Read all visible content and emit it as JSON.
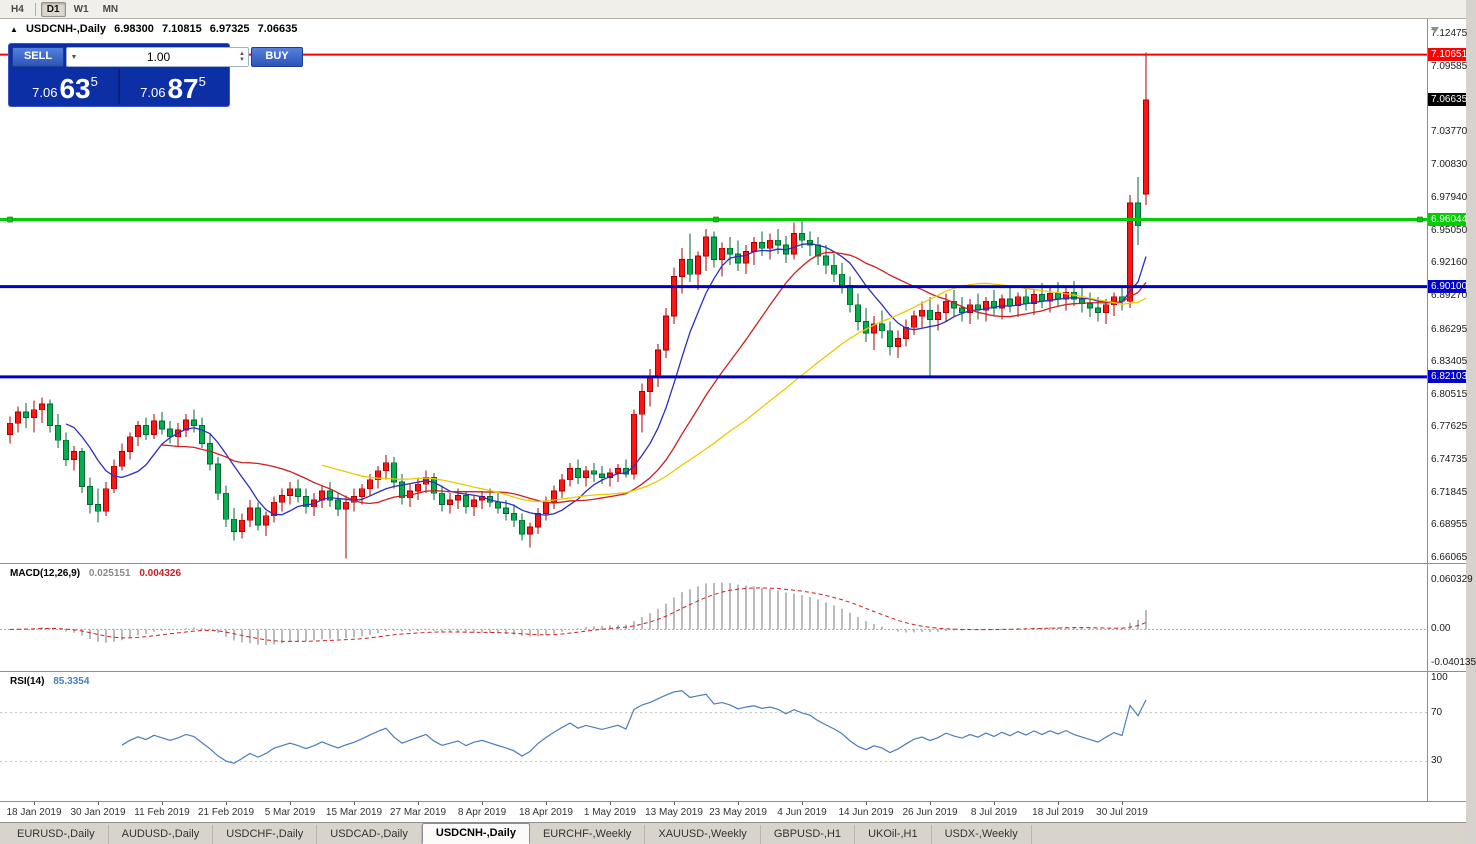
{
  "toolbar": {
    "buttons": [
      {
        "label": "H4",
        "active": false
      },
      {
        "label": "D1",
        "active": true
      },
      {
        "label": "W1",
        "active": false
      },
      {
        "label": "MN",
        "active": false
      }
    ]
  },
  "icons": {
    "oneclick_toggle": "▲",
    "volume_dropdown": "▼",
    "spinner_up": "▲",
    "spinner_down": "▼"
  },
  "window": {
    "title_symbol": "USDCNH-,Daily",
    "ohlc": {
      "open": "6.98300",
      "high": "7.10815",
      "low": "6.97325",
      "close": "7.06635"
    }
  },
  "trade_panel": {
    "sell_label": "SELL",
    "buy_label": "BUY",
    "volume": "1.00",
    "bid": {
      "prefix": "7.06",
      "big": "63",
      "sup": "5"
    },
    "ask": {
      "prefix": "7.06",
      "big": "87",
      "sup": "5"
    }
  },
  "price_axis": {
    "ticks": [
      {
        "v": 7.12475,
        "t": "7.12475"
      },
      {
        "v": 7.09585,
        "t": "7.09585"
      },
      {
        "v": 7.0377,
        "t": "7.03770"
      },
      {
        "v": 7.0083,
        "t": "7.00830"
      },
      {
        "v": 6.9794,
        "t": "6.97940"
      },
      {
        "v": 6.9505,
        "t": "6.95050"
      },
      {
        "v": 6.9216,
        "t": "6.92160"
      },
      {
        "v": 6.8927,
        "t": "6.89270"
      },
      {
        "v": 6.86295,
        "t": "6.86295"
      },
      {
        "v": 6.83405,
        "t": "6.83405"
      },
      {
        "v": 6.80515,
        "t": "6.80515"
      },
      {
        "v": 6.77625,
        "t": "6.77625"
      },
      {
        "v": 6.74735,
        "t": "6.74735"
      },
      {
        "v": 6.71845,
        "t": "6.71845"
      },
      {
        "v": 6.68955,
        "t": "6.68955"
      },
      {
        "v": 6.66065,
        "t": "6.66065"
      }
    ]
  },
  "current_price": {
    "v": 7.06635,
    "t": "7.06635",
    "color": "#000000"
  },
  "macd_panel": {
    "name": "MACD(12,26,9)",
    "main_value": "0.025151",
    "signal_value": "0.004326",
    "axis": [
      {
        "v": 0.060329,
        "t": "0.060329"
      },
      {
        "v": 0,
        "t": "0.00"
      },
      {
        "v": -0.040135,
        "t": "-0.040135"
      }
    ]
  },
  "rsi_panel": {
    "name": "RSI(14)",
    "value": "85.3354",
    "axis": [
      {
        "v": 100,
        "t": "100"
      },
      {
        "v": 70,
        "t": "70"
      },
      {
        "v": 30,
        "t": "30"
      }
    ],
    "levels": [
      70,
      30
    ]
  },
  "tabs": {
    "items": [
      {
        "label": "EURUSD-,Daily",
        "active": false
      },
      {
        "label": "AUDUSD-,Daily",
        "active": false
      },
      {
        "label": "USDCHF-,Daily",
        "active": false
      },
      {
        "label": "USDCAD-,Daily",
        "active": false
      },
      {
        "label": "USDCNH-,Daily",
        "active": true
      },
      {
        "label": "EURCHF-,Weekly",
        "active": false
      },
      {
        "label": "XAUUSD-,Weekly",
        "active": false
      },
      {
        "label": "GBPUSD-,H1",
        "active": false
      },
      {
        "label": "UKOil-,H1",
        "active": false
      },
      {
        "label": "USDX-,Weekly",
        "active": false
      }
    ]
  },
  "chart_data": {
    "type": "candlestick",
    "symbol": "USDCNH",
    "timeframe": "Daily",
    "ylim": [
      6.653,
      7.138
    ],
    "up_color": "#fe1414",
    "up_border": "#a80000",
    "down_color": "#00b050",
    "down_border": "#006830",
    "ohlc_last": {
      "open": 6.983,
      "high": 7.10815,
      "low": 6.97325,
      "close": 7.06635
    },
    "moving_averages": [
      {
        "type": "sma",
        "period": 8,
        "color": "#2e2ec0"
      },
      {
        "type": "sma",
        "period": 20,
        "color": "#cc2020"
      },
      {
        "type": "sma",
        "period": 40,
        "color": "#e8cc00"
      }
    ],
    "indicators": {
      "macd": {
        "params": "12,26,9",
        "histogram_color": "#9e9e9e",
        "signal_color": "#cc2020",
        "last_main": 0.025151,
        "last_signal": 0.004326
      },
      "rsi": {
        "period": 14,
        "color": "#4a7ebb",
        "last": 85.3354,
        "levels": [
          30,
          70
        ]
      }
    },
    "hlines": [
      {
        "price": 7.10651,
        "label": "7.10651",
        "color": "#FF0000",
        "thickness": 2,
        "handles": false
      },
      {
        "price": 6.96044,
        "label": "6.96044",
        "color": "#00CE00",
        "thickness": 3,
        "handles": true
      },
      {
        "price": 6.901,
        "label": "6.90100",
        "color": "#0000C8",
        "thickness": 3,
        "handles": false
      },
      {
        "price": 6.82103,
        "label": "6.82103",
        "color": "#0000C8",
        "thickness": 3,
        "handles": false
      }
    ],
    "date_ticks": [
      {
        "index": 3,
        "label": "18 Jan 2019"
      },
      {
        "index": 11,
        "label": "30 Jan 2019"
      },
      {
        "index": 19,
        "label": "11 Feb 2019"
      },
      {
        "index": 27,
        "label": "21 Feb 2019"
      },
      {
        "index": 35,
        "label": "5 Mar 2019"
      },
      {
        "index": 43,
        "label": "15 Mar 2019"
      },
      {
        "index": 51,
        "label": "27 Mar 2019"
      },
      {
        "index": 59,
        "label": "8 Apr 2019"
      },
      {
        "index": 67,
        "label": "18 Apr 2019"
      },
      {
        "index": 75,
        "label": "1 May 2019"
      },
      {
        "index": 83,
        "label": "13 May 2019"
      },
      {
        "index": 91,
        "label": "23 May 2019"
      },
      {
        "index": 99,
        "label": "4 Jun 2019"
      },
      {
        "index": 107,
        "label": "14 Jun 2019"
      },
      {
        "index": 115,
        "label": "26 Jun 2019"
      },
      {
        "index": 123,
        "label": "8 Jul 2019"
      },
      {
        "index": 131,
        "label": "18 Jul 2019"
      },
      {
        "index": 139,
        "label": "30 Jul 2019"
      }
    ],
    "candles": [
      [
        6.77,
        6.786,
        6.762,
        6.78
      ],
      [
        6.78,
        6.795,
        6.772,
        6.79
      ],
      [
        6.79,
        6.798,
        6.776,
        6.785
      ],
      [
        6.785,
        6.8,
        6.772,
        6.792
      ],
      [
        6.792,
        6.803,
        6.78,
        6.797
      ],
      [
        6.797,
        6.801,
        6.772,
        6.778
      ],
      [
        6.778,
        6.788,
        6.758,
        6.765
      ],
      [
        6.765,
        6.772,
        6.742,
        6.748
      ],
      [
        6.748,
        6.76,
        6.738,
        6.755
      ],
      [
        6.755,
        6.758,
        6.718,
        6.724
      ],
      [
        6.724,
        6.732,
        6.7,
        6.708
      ],
      [
        6.708,
        6.722,
        6.692,
        6.702
      ],
      [
        6.702,
        6.728,
        6.698,
        6.722
      ],
      [
        6.722,
        6.748,
        6.718,
        6.742
      ],
      [
        6.742,
        6.762,
        6.738,
        6.755
      ],
      [
        6.755,
        6.772,
        6.748,
        6.768
      ],
      [
        6.768,
        6.782,
        6.76,
        6.778
      ],
      [
        6.778,
        6.785,
        6.765,
        6.77
      ],
      [
        6.77,
        6.788,
        6.766,
        6.782
      ],
      [
        6.782,
        6.79,
        6.77,
        6.775
      ],
      [
        6.775,
        6.782,
        6.762,
        6.768
      ],
      [
        6.768,
        6.78,
        6.76,
        6.774
      ],
      [
        6.774,
        6.788,
        6.768,
        6.783
      ],
      [
        6.783,
        6.792,
        6.772,
        6.778
      ],
      [
        6.778,
        6.785,
        6.758,
        6.762
      ],
      [
        6.762,
        6.77,
        6.738,
        6.744
      ],
      [
        6.744,
        6.75,
        6.712,
        6.718
      ],
      [
        6.718,
        6.725,
        6.688,
        6.695
      ],
      [
        6.695,
        6.705,
        6.676,
        6.684
      ],
      [
        6.684,
        6.7,
        6.678,
        6.694
      ],
      [
        6.694,
        6.712,
        6.688,
        6.705
      ],
      [
        6.705,
        6.71,
        6.685,
        6.69
      ],
      [
        6.69,
        6.702,
        6.68,
        6.698
      ],
      [
        6.698,
        6.715,
        6.692,
        6.71
      ],
      [
        6.71,
        6.722,
        6.702,
        6.716
      ],
      [
        6.716,
        6.728,
        6.708,
        6.722
      ],
      [
        6.722,
        6.73,
        6.71,
        6.715
      ],
      [
        6.715,
        6.722,
        6.7,
        6.706
      ],
      [
        6.706,
        6.718,
        6.698,
        6.712
      ],
      [
        6.712,
        6.725,
        6.705,
        6.72
      ],
      [
        6.72,
        6.728,
        6.706,
        6.712
      ],
      [
        6.712,
        6.718,
        6.698,
        6.704
      ],
      [
        6.704,
        6.716,
        6.66,
        6.71
      ],
      [
        6.71,
        6.722,
        6.702,
        6.715
      ],
      [
        6.715,
        6.726,
        6.708,
        6.722
      ],
      [
        6.722,
        6.735,
        6.715,
        6.73
      ],
      [
        6.73,
        6.742,
        6.722,
        6.738
      ],
      [
        6.738,
        6.752,
        6.73,
        6.745
      ],
      [
        6.745,
        6.75,
        6.722,
        6.728
      ],
      [
        6.728,
        6.735,
        6.708,
        6.714
      ],
      [
        6.714,
        6.726,
        6.706,
        6.72
      ],
      [
        6.72,
        6.732,
        6.712,
        6.726
      ],
      [
        6.726,
        6.738,
        6.718,
        6.732
      ],
      [
        6.732,
        6.736,
        6.712,
        6.718
      ],
      [
        6.718,
        6.725,
        6.702,
        6.708
      ],
      [
        6.708,
        6.718,
        6.7,
        6.712
      ],
      [
        6.712,
        6.722,
        6.704,
        6.716
      ],
      [
        6.716,
        6.72,
        6.7,
        6.706
      ],
      [
        6.706,
        6.716,
        6.698,
        6.712
      ],
      [
        6.712,
        6.72,
        6.704,
        6.715
      ],
      [
        6.715,
        6.722,
        6.706,
        6.71
      ],
      [
        6.71,
        6.718,
        6.7,
        6.705
      ],
      [
        6.705,
        6.712,
        6.694,
        6.7
      ],
      [
        6.7,
        6.708,
        6.688,
        6.694
      ],
      [
        6.694,
        6.7,
        6.676,
        6.682
      ],
      [
        6.682,
        6.692,
        6.67,
        6.688
      ],
      [
        6.688,
        6.705,
        6.682,
        6.7
      ],
      [
        6.7,
        6.715,
        6.694,
        6.71
      ],
      [
        6.71,
        6.725,
        6.704,
        6.72
      ],
      [
        6.72,
        6.735,
        6.714,
        6.73
      ],
      [
        6.73,
        6.745,
        6.724,
        6.74
      ],
      [
        6.74,
        6.748,
        6.726,
        6.732
      ],
      [
        6.732,
        6.742,
        6.724,
        6.738
      ],
      [
        6.738,
        6.745,
        6.728,
        6.735
      ],
      [
        6.735,
        6.742,
        6.726,
        6.732
      ],
      [
        6.732,
        6.74,
        6.724,
        6.736
      ],
      [
        6.736,
        6.744,
        6.728,
        6.74
      ],
      [
        6.74,
        6.748,
        6.732,
        6.735
      ],
      [
        6.735,
        6.792,
        6.73,
        6.788
      ],
      [
        6.788,
        6.815,
        6.772,
        6.808
      ],
      [
        6.808,
        6.828,
        6.795,
        6.822
      ],
      [
        6.822,
        6.85,
        6.812,
        6.845
      ],
      [
        6.845,
        6.882,
        6.838,
        6.875
      ],
      [
        6.875,
        6.918,
        6.868,
        6.91
      ],
      [
        6.91,
        6.935,
        6.895,
        6.925
      ],
      [
        6.925,
        6.948,
        6.905,
        6.912
      ],
      [
        6.912,
        6.932,
        6.898,
        6.928
      ],
      [
        6.928,
        6.952,
        6.915,
        6.945
      ],
      [
        6.945,
        6.95,
        6.918,
        6.925
      ],
      [
        6.925,
        6.94,
        6.91,
        6.935
      ],
      [
        6.935,
        6.945,
        6.92,
        6.93
      ],
      [
        6.93,
        6.942,
        6.915,
        6.922
      ],
      [
        6.922,
        6.938,
        6.912,
        6.932
      ],
      [
        6.932,
        6.945,
        6.92,
        6.94
      ],
      [
        6.94,
        6.95,
        6.928,
        6.935
      ],
      [
        6.935,
        6.948,
        6.925,
        6.942
      ],
      [
        6.942,
        6.952,
        6.93,
        6.938
      ],
      [
        6.938,
        6.946,
        6.922,
        6.93
      ],
      [
        6.93,
        6.958,
        6.925,
        6.948
      ],
      [
        6.948,
        6.962,
        6.935,
        6.942
      ],
      [
        6.942,
        6.95,
        6.928,
        6.938
      ],
      [
        6.938,
        6.945,
        6.92,
        6.928
      ],
      [
        6.928,
        6.938,
        6.912,
        6.92
      ],
      [
        6.92,
        6.93,
        6.905,
        6.912
      ],
      [
        6.912,
        6.922,
        6.895,
        6.902
      ],
      [
        6.902,
        6.91,
        6.878,
        6.885
      ],
      [
        6.885,
        6.895,
        6.862,
        6.87
      ],
      [
        6.87,
        6.882,
        6.852,
        6.86
      ],
      [
        6.86,
        6.875,
        6.845,
        6.868
      ],
      [
        6.868,
        6.88,
        6.855,
        6.862
      ],
      [
        6.862,
        6.87,
        6.84,
        6.848
      ],
      [
        6.848,
        6.862,
        6.838,
        6.855
      ],
      [
        6.855,
        6.872,
        6.848,
        6.865
      ],
      [
        6.865,
        6.88,
        6.858,
        6.875
      ],
      [
        6.875,
        6.888,
        6.865,
        6.88
      ],
      [
        6.88,
        6.892,
        6.82,
        6.872
      ],
      [
        6.872,
        6.885,
        6.862,
        6.878
      ],
      [
        6.878,
        6.895,
        6.87,
        6.888
      ],
      [
        6.888,
        6.898,
        6.875,
        6.882
      ],
      [
        6.882,
        6.892,
        6.87,
        6.878
      ],
      [
        6.878,
        6.89,
        6.868,
        6.885
      ],
      [
        6.885,
        6.895,
        6.872,
        6.88
      ],
      [
        6.88,
        6.892,
        6.87,
        6.888
      ],
      [
        6.888,
        6.898,
        6.876,
        6.882
      ],
      [
        6.882,
        6.894,
        6.872,
        6.89
      ],
      [
        6.89,
        6.9,
        6.878,
        6.884
      ],
      [
        6.884,
        6.896,
        6.874,
        6.892
      ],
      [
        6.892,
        6.902,
        6.88,
        6.886
      ],
      [
        6.886,
        6.898,
        6.876,
        6.894
      ],
      [
        6.894,
        6.904,
        6.882,
        6.888
      ],
      [
        6.888,
        6.9,
        6.878,
        6.895
      ],
      [
        6.895,
        6.905,
        6.884,
        6.89
      ],
      [
        6.89,
        6.902,
        6.88,
        6.896
      ],
      [
        6.896,
        6.906,
        6.884,
        6.89
      ],
      [
        6.89,
        6.9,
        6.878,
        6.886
      ],
      [
        6.886,
        6.896,
        6.874,
        6.882
      ],
      [
        6.882,
        6.892,
        6.87,
        6.878
      ],
      [
        6.878,
        6.89,
        6.868,
        6.885
      ],
      [
        6.885,
        6.896,
        6.875,
        6.892
      ],
      [
        6.892,
        6.902,
        6.88,
        6.888
      ],
      [
        6.888,
        6.982,
        6.882,
        6.975
      ],
      [
        6.975,
        6.998,
        6.938,
        6.955
      ],
      [
        6.983,
        7.10815,
        6.97325,
        7.06635
      ]
    ]
  }
}
